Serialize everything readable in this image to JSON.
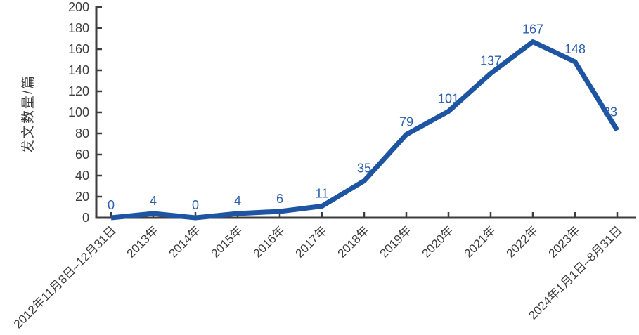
{
  "chart_data": {
    "type": "line",
    "title": "",
    "xlabel": "",
    "ylabel": "发文数量/篇",
    "categories": [
      "2012年11月8日–12月31日",
      "2013年",
      "2014年",
      "2015年",
      "2016年",
      "2017年",
      "2018年",
      "2019年",
      "2020年",
      "2021年",
      "2022年",
      "2023年",
      "2024年1月1日–8月31日"
    ],
    "values": [
      0,
      4,
      0,
      4,
      6,
      11,
      35,
      79,
      101,
      137,
      167,
      148,
      83
    ],
    "ylim": [
      0,
      200
    ],
    "ytick_step": 20,
    "grid": false,
    "legend": "none",
    "line_color": "#1e55a2",
    "label_color": "#2c5fad",
    "axis_color": "#3d3d3d"
  }
}
